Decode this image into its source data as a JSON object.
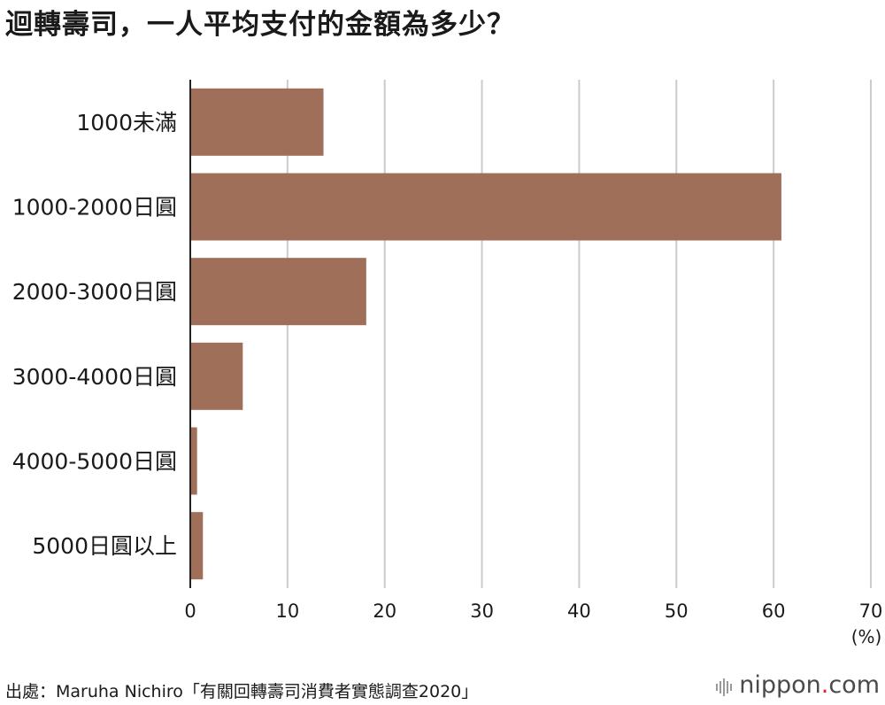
{
  "title": "迴轉壽司，一人平均支付的金額為多少？",
  "source": "出處：Maruha Nichiro「有關回轉壽司消費者實態調查2020」",
  "logo": {
    "name": "nippon",
    "dot": ".",
    "suffix": "com"
  },
  "colors": {
    "bar": "#a06f5a",
    "grid": "#cccccc",
    "axis": "#222222",
    "logo_dot": "#d9222a"
  },
  "chart_data": {
    "type": "bar",
    "orientation": "horizontal",
    "categories": [
      "1000未滿",
      "1000-2000日圓",
      "2000-3000日圓",
      "3000-4000日圓",
      "4000-5000日圓",
      "5000日圓以上"
    ],
    "values": [
      13.7,
      60.8,
      18.1,
      5.4,
      0.7,
      1.3
    ],
    "unit_label": "(%)",
    "xlim": [
      0,
      70
    ],
    "xticks": [
      0,
      10,
      20,
      30,
      40,
      50,
      60,
      70
    ],
    "grid": true
  }
}
